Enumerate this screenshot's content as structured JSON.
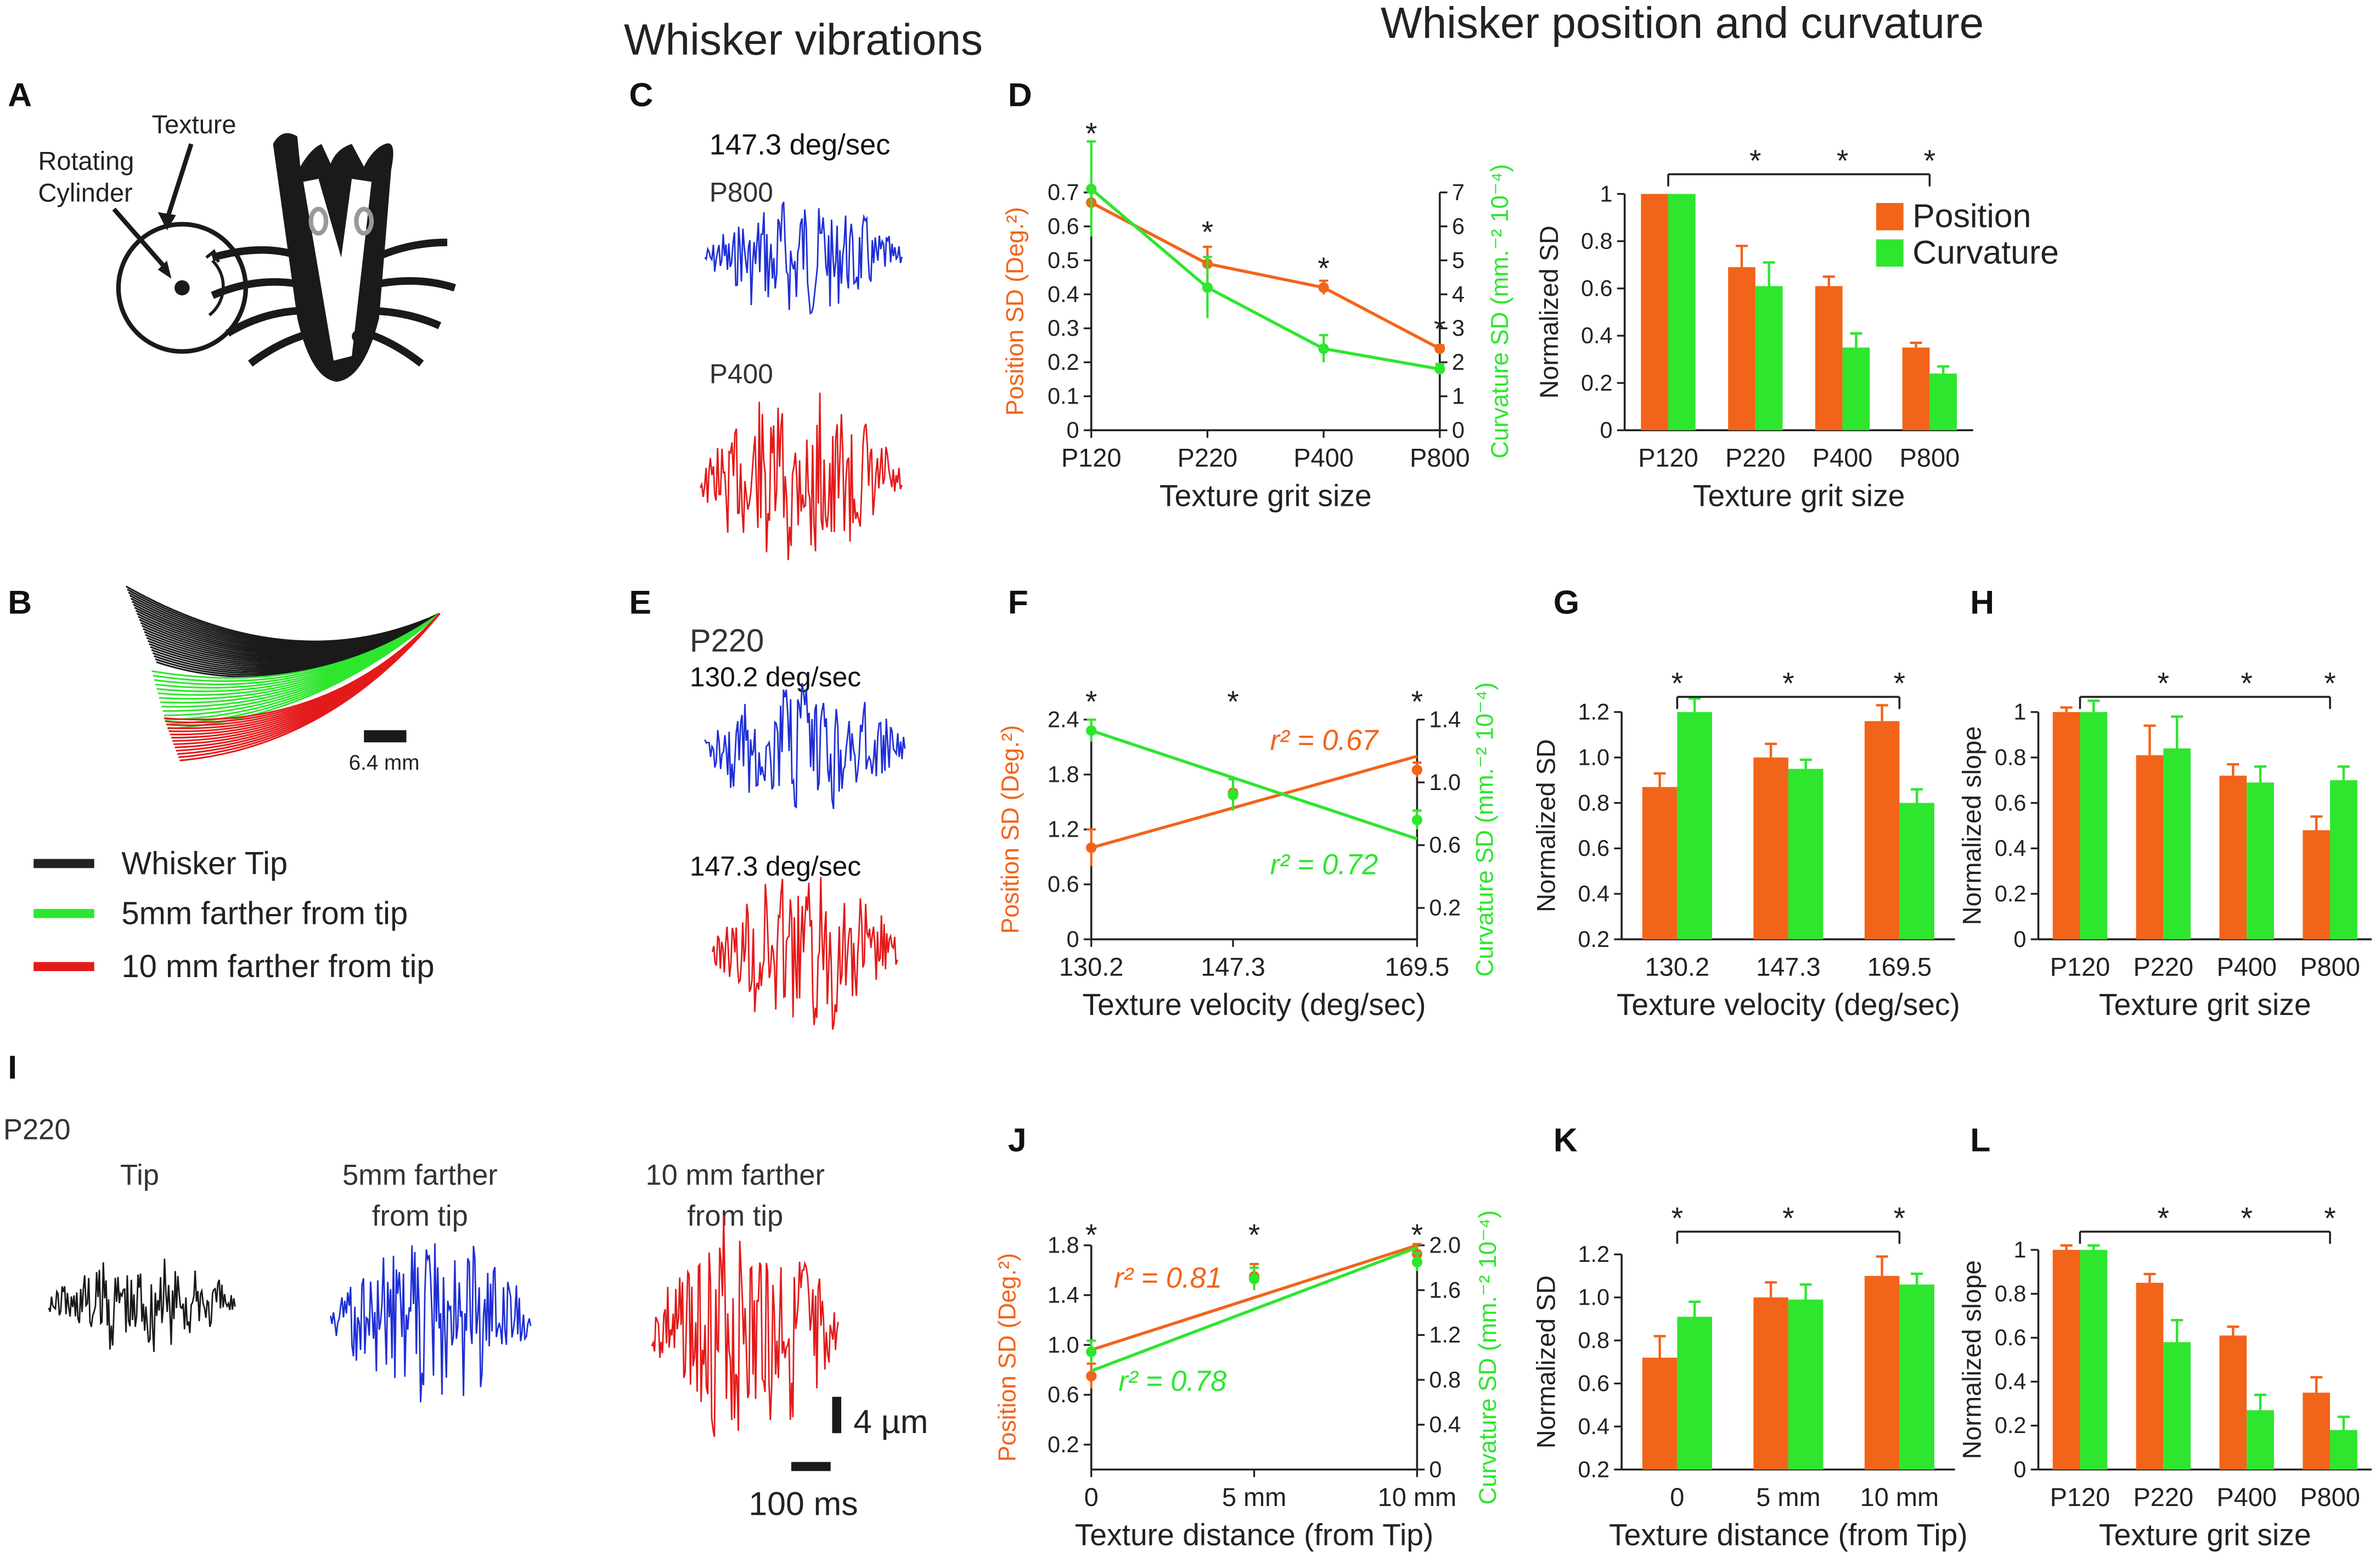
{
  "colors": {
    "position": "#F26419",
    "curvature": "#2EE62E",
    "black": "#1a1a1a",
    "blue": "#1f2fd6",
    "red": "#e41a1a",
    "ink": "#222222",
    "lightgray": "#8c8c8c"
  },
  "figure": {
    "header_vibrations": "Whisker vibrations",
    "header_position": "Whisker position and curvature",
    "panel_labels": [
      "A",
      "B",
      "C",
      "D",
      "E",
      "F",
      "G",
      "H",
      "I",
      "J",
      "K",
      "L"
    ],
    "star": "*",
    "panel_a": {
      "texture": "Texture",
      "rotating": "Rotating",
      "cylinder": "Cylinder"
    },
    "panel_b": {
      "scale": "6.4 mm",
      "legend": [
        "Whisker Tip",
        "5mm farther from tip",
        "10 mm farther from tip"
      ]
    },
    "panel_c": {
      "speed": "147.3 deg/sec",
      "trace1": "P800",
      "trace2": "P400"
    },
    "panel_e": {
      "grit": "P220",
      "trace1": "130.2 deg/sec",
      "trace2": "147.3 deg/sec"
    },
    "panel_i": {
      "grit": "P220",
      "col1": "Tip",
      "col2_l1": "5mm farther",
      "col2_l2": "from tip",
      "col3_l1": "10 mm farther",
      "col3_l2": "from tip",
      "scale_y": "4 µm",
      "scale_x": "100 ms"
    }
  },
  "chart_data": [
    {
      "panel": "D",
      "type": "line",
      "x": [
        "P120",
        "P220",
        "P400",
        "P800"
      ],
      "xlabel": "Texture grit size",
      "ylabel": "Position SD (Deg.²)",
      "y2label": "Curvature SD (mm.⁻² 10⁻⁴)",
      "ylim": [
        0,
        0.7
      ],
      "y_ticks": [
        "0",
        "0.1",
        "0.2",
        "0.3",
        "0.4",
        "0.5",
        "0.6",
        "0.7"
      ],
      "y2lim": [
        0,
        7
      ],
      "y2_ticks": [
        "0",
        "1",
        "2",
        "3",
        "4",
        "5",
        "6",
        "7"
      ],
      "series": [
        {
          "name": "Position",
          "axis": "left",
          "values": [
            0.67,
            0.49,
            0.42,
            0.24
          ],
          "errors": [
            0.04,
            0.05,
            0.02,
            0.01
          ]
        },
        {
          "name": "Curvature",
          "axis": "right",
          "values": [
            7.1,
            4.2,
            2.4,
            1.8
          ],
          "errors": [
            1.4,
            0.9,
            0.4,
            0.15
          ]
        }
      ],
      "significance": [
        "*",
        "*",
        "*",
        "*"
      ]
    },
    {
      "panel": "D2",
      "type": "bar",
      "categories": [
        "P120",
        "P220",
        "P400",
        "P800"
      ],
      "xlabel": "Texture grit size",
      "ylabel": "Normalized SD",
      "ylim": [
        0,
        1
      ],
      "y_ticks": [
        "0",
        "0.2",
        "0.4",
        "0.6",
        "0.8",
        "1"
      ],
      "series": [
        {
          "name": "Position",
          "values": [
            1.0,
            0.69,
            0.61,
            0.35
          ],
          "errors": [
            0,
            0.09,
            0.04,
            0.02
          ]
        },
        {
          "name": "Curvature",
          "values": [
            1.0,
            0.61,
            0.35,
            0.24
          ],
          "errors": [
            0,
            0.1,
            0.06,
            0.03
          ]
        }
      ],
      "legend": [
        "Position",
        "Curvature"
      ],
      "significance": [
        "*",
        "*",
        "*"
      ]
    },
    {
      "panel": "F",
      "type": "scatter",
      "x": [
        130.2,
        147.3,
        169.5
      ],
      "x_ticks": [
        "130.2",
        "147.3",
        "169.5"
      ],
      "xlabel": "Texture velocity (deg/sec)",
      "ylabel": "Position SD (Deg.²)",
      "y2label": "Curvature SD (mm.⁻² 10⁻⁴)",
      "ylim": [
        0,
        2.4
      ],
      "y_ticks": [
        "0",
        "0.6",
        "1.2",
        "1.8",
        "2.4"
      ],
      "y2lim": [
        0,
        1.4
      ],
      "y2_ticks": [
        "0.2",
        "0.6",
        "1.0",
        "1.4"
      ],
      "series": [
        {
          "name": "Position",
          "axis": "left",
          "values": [
            1.0,
            1.6,
            1.85
          ],
          "errors": [
            0.2,
            0.15,
            0.08
          ],
          "fit_start": 1.0,
          "fit_end": 2.0
        },
        {
          "name": "Curvature",
          "axis": "right",
          "values": [
            1.33,
            0.92,
            0.76
          ],
          "errors": [
            0.07,
            0.1,
            0.06
          ],
          "fit_start": 1.33,
          "fit_end": 0.64
        }
      ],
      "annotations": [
        "r² = 0.67",
        "r² = 0.72"
      ],
      "significance": [
        "*",
        "*",
        "*"
      ]
    },
    {
      "panel": "G",
      "type": "bar",
      "categories": [
        "130.2",
        "147.3",
        "169.5"
      ],
      "xlabel": "Texture velocity (deg/sec)",
      "ylabel": "Normalized SD",
      "ylim": [
        0.2,
        1.2
      ],
      "y_ticks": [
        "0.2",
        "0.4",
        "0.6",
        "0.8",
        "1.0",
        "1.2"
      ],
      "series": [
        {
          "name": "Position",
          "values": [
            0.87,
            1.0,
            1.16
          ],
          "errors": [
            0.06,
            0.06,
            0.07
          ]
        },
        {
          "name": "Curvature",
          "values": [
            1.2,
            0.95,
            0.8
          ],
          "errors": [
            0.06,
            0.04,
            0.06
          ]
        }
      ],
      "significance": [
        "*",
        "*",
        "*"
      ]
    },
    {
      "panel": "H",
      "type": "bar",
      "categories": [
        "P120",
        "P220",
        "P400",
        "P800"
      ],
      "xlabel": "Texture grit size",
      "ylabel": "Normalized slope",
      "ylim": [
        0,
        1
      ],
      "y_ticks": [
        "0",
        "0.2",
        "0.4",
        "0.6",
        "0.8",
        "1"
      ],
      "series": [
        {
          "name": "Position",
          "values": [
            1.0,
            0.81,
            0.72,
            0.48
          ],
          "errors": [
            0.02,
            0.13,
            0.05,
            0.06
          ]
        },
        {
          "name": "Curvature",
          "values": [
            1.0,
            0.84,
            0.69,
            0.7
          ],
          "errors": [
            0.05,
            0.14,
            0.07,
            0.06
          ]
        }
      ],
      "significance": [
        "*",
        "*",
        "*"
      ]
    },
    {
      "panel": "J",
      "type": "scatter",
      "x": [
        0,
        5,
        10
      ],
      "x_ticks": [
        "0",
        "5 mm",
        "10 mm"
      ],
      "xlabel": "Texture distance (from Tip)",
      "ylabel": "Position SD (Deg.²)",
      "y2label": "Curvature SD (mm.⁻² 10⁻⁴)",
      "ylim": [
        0,
        1.8
      ],
      "y_ticks": [
        "0.2",
        "0.6",
        "1.0",
        "1.4",
        "1.8"
      ],
      "y2lim": [
        0,
        2.0
      ],
      "y2_ticks": [
        "0",
        "0.4",
        "0.8",
        "1.2",
        "1.6",
        "2.0"
      ],
      "series": [
        {
          "name": "Position",
          "axis": "left",
          "values": [
            0.75,
            1.55,
            1.73
          ],
          "errors": [
            0.1,
            0.1,
            0.08
          ],
          "fit_start": 0.96,
          "fit_end": 1.8
        },
        {
          "name": "Curvature",
          "axis": "right",
          "values": [
            1.05,
            1.7,
            1.85
          ],
          "errors": [
            0.1,
            0.1,
            0.08
          ],
          "fit_start": 0.88,
          "fit_end": 1.98
        }
      ],
      "annotations": [
        "r² = 0.81",
        "r² = 0.78"
      ],
      "significance": [
        "*",
        "*",
        "*"
      ]
    },
    {
      "panel": "K",
      "type": "bar",
      "categories": [
        "0",
        "5 mm",
        "10 mm"
      ],
      "xlabel": "Texture distance (from Tip)",
      "ylabel": "Normalized SD",
      "ylim": [
        0.2,
        1.2
      ],
      "y_ticks": [
        "0.2",
        "0.4",
        "0.6",
        "0.8",
        "1.0",
        "1.2"
      ],
      "series": [
        {
          "name": "Position",
          "values": [
            0.72,
            1.0,
            1.1
          ],
          "errors": [
            0.1,
            0.07,
            0.09
          ]
        },
        {
          "name": "Curvature",
          "values": [
            0.91,
            0.99,
            1.06
          ],
          "errors": [
            0.07,
            0.07,
            0.05
          ]
        }
      ],
      "significance": [
        "*",
        "*",
        "*"
      ]
    },
    {
      "panel": "L",
      "type": "bar",
      "categories": [
        "P120",
        "P220",
        "P400",
        "P800"
      ],
      "xlabel": "Texture grit size",
      "ylabel": "Normalized slope",
      "ylim": [
        0,
        1
      ],
      "y_ticks": [
        "0",
        "0.2",
        "0.4",
        "0.6",
        "0.8",
        "1"
      ],
      "series": [
        {
          "name": "Position",
          "values": [
            1.0,
            0.85,
            0.61,
            0.35
          ],
          "errors": [
            0.02,
            0.04,
            0.04,
            0.07
          ]
        },
        {
          "name": "Curvature",
          "values": [
            1.0,
            0.58,
            0.27,
            0.18
          ],
          "errors": [
            0.02,
            0.1,
            0.07,
            0.06
          ]
        }
      ],
      "significance": [
        "*",
        "*",
        "*"
      ]
    }
  ]
}
